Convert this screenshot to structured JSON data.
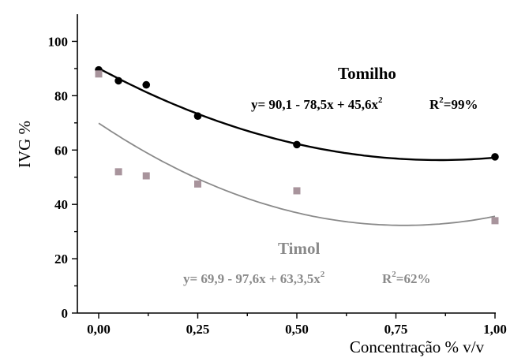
{
  "chart_data": {
    "type": "scatter",
    "xlabel": "Concentração % v/v",
    "ylabel": "IVG %",
    "xlim": [
      -0.05,
      1.0
    ],
    "ylim": [
      0,
      110
    ],
    "x_ticks": [
      0.0,
      0.25,
      0.5,
      0.75,
      1.0
    ],
    "x_tick_labels": [
      "0,00",
      "0,25",
      "0,50",
      "0,75",
      "1,00"
    ],
    "y_ticks": [
      0,
      20,
      40,
      60,
      80,
      100
    ],
    "y_tick_labels": [
      "0",
      "20",
      "40",
      "60",
      "80",
      "100"
    ],
    "grid": false,
    "series": [
      {
        "name": "Tomilho",
        "marker": "circle",
        "color": "#000000",
        "trend_color": "#000000",
        "x": [
          0.0,
          0.05,
          0.12,
          0.25,
          0.5,
          1.0
        ],
        "y": [
          89.5,
          85.5,
          84.0,
          72.5,
          62.0,
          57.5
        ],
        "fit": {
          "c0": 90.1,
          "c1": -78.5,
          "c2": 45.6
        },
        "equation_label": "y= 90,1 - 78,5x + 45,6x",
        "equation_exp": "2",
        "r2_label": "R",
        "r2_exp": "2",
        "r2_value": "=99%"
      },
      {
        "name": "Timol",
        "marker": "square",
        "color": "#a8949c",
        "trend_color": "#8a8a8a",
        "x": [
          0.0,
          0.05,
          0.12,
          0.25,
          0.5,
          1.0
        ],
        "y": [
          88.0,
          52.0,
          50.5,
          47.5,
          45.0,
          34.0
        ],
        "fit": {
          "c0": 69.9,
          "c1": -97.6,
          "c2": 63.3
        },
        "equation_label": "y= 69,9 - 97,6x + 63,3,5x",
        "equation_exp": "2",
        "r2_label": "R",
        "r2_exp": "2",
        "r2_value": "=62%"
      }
    ]
  }
}
